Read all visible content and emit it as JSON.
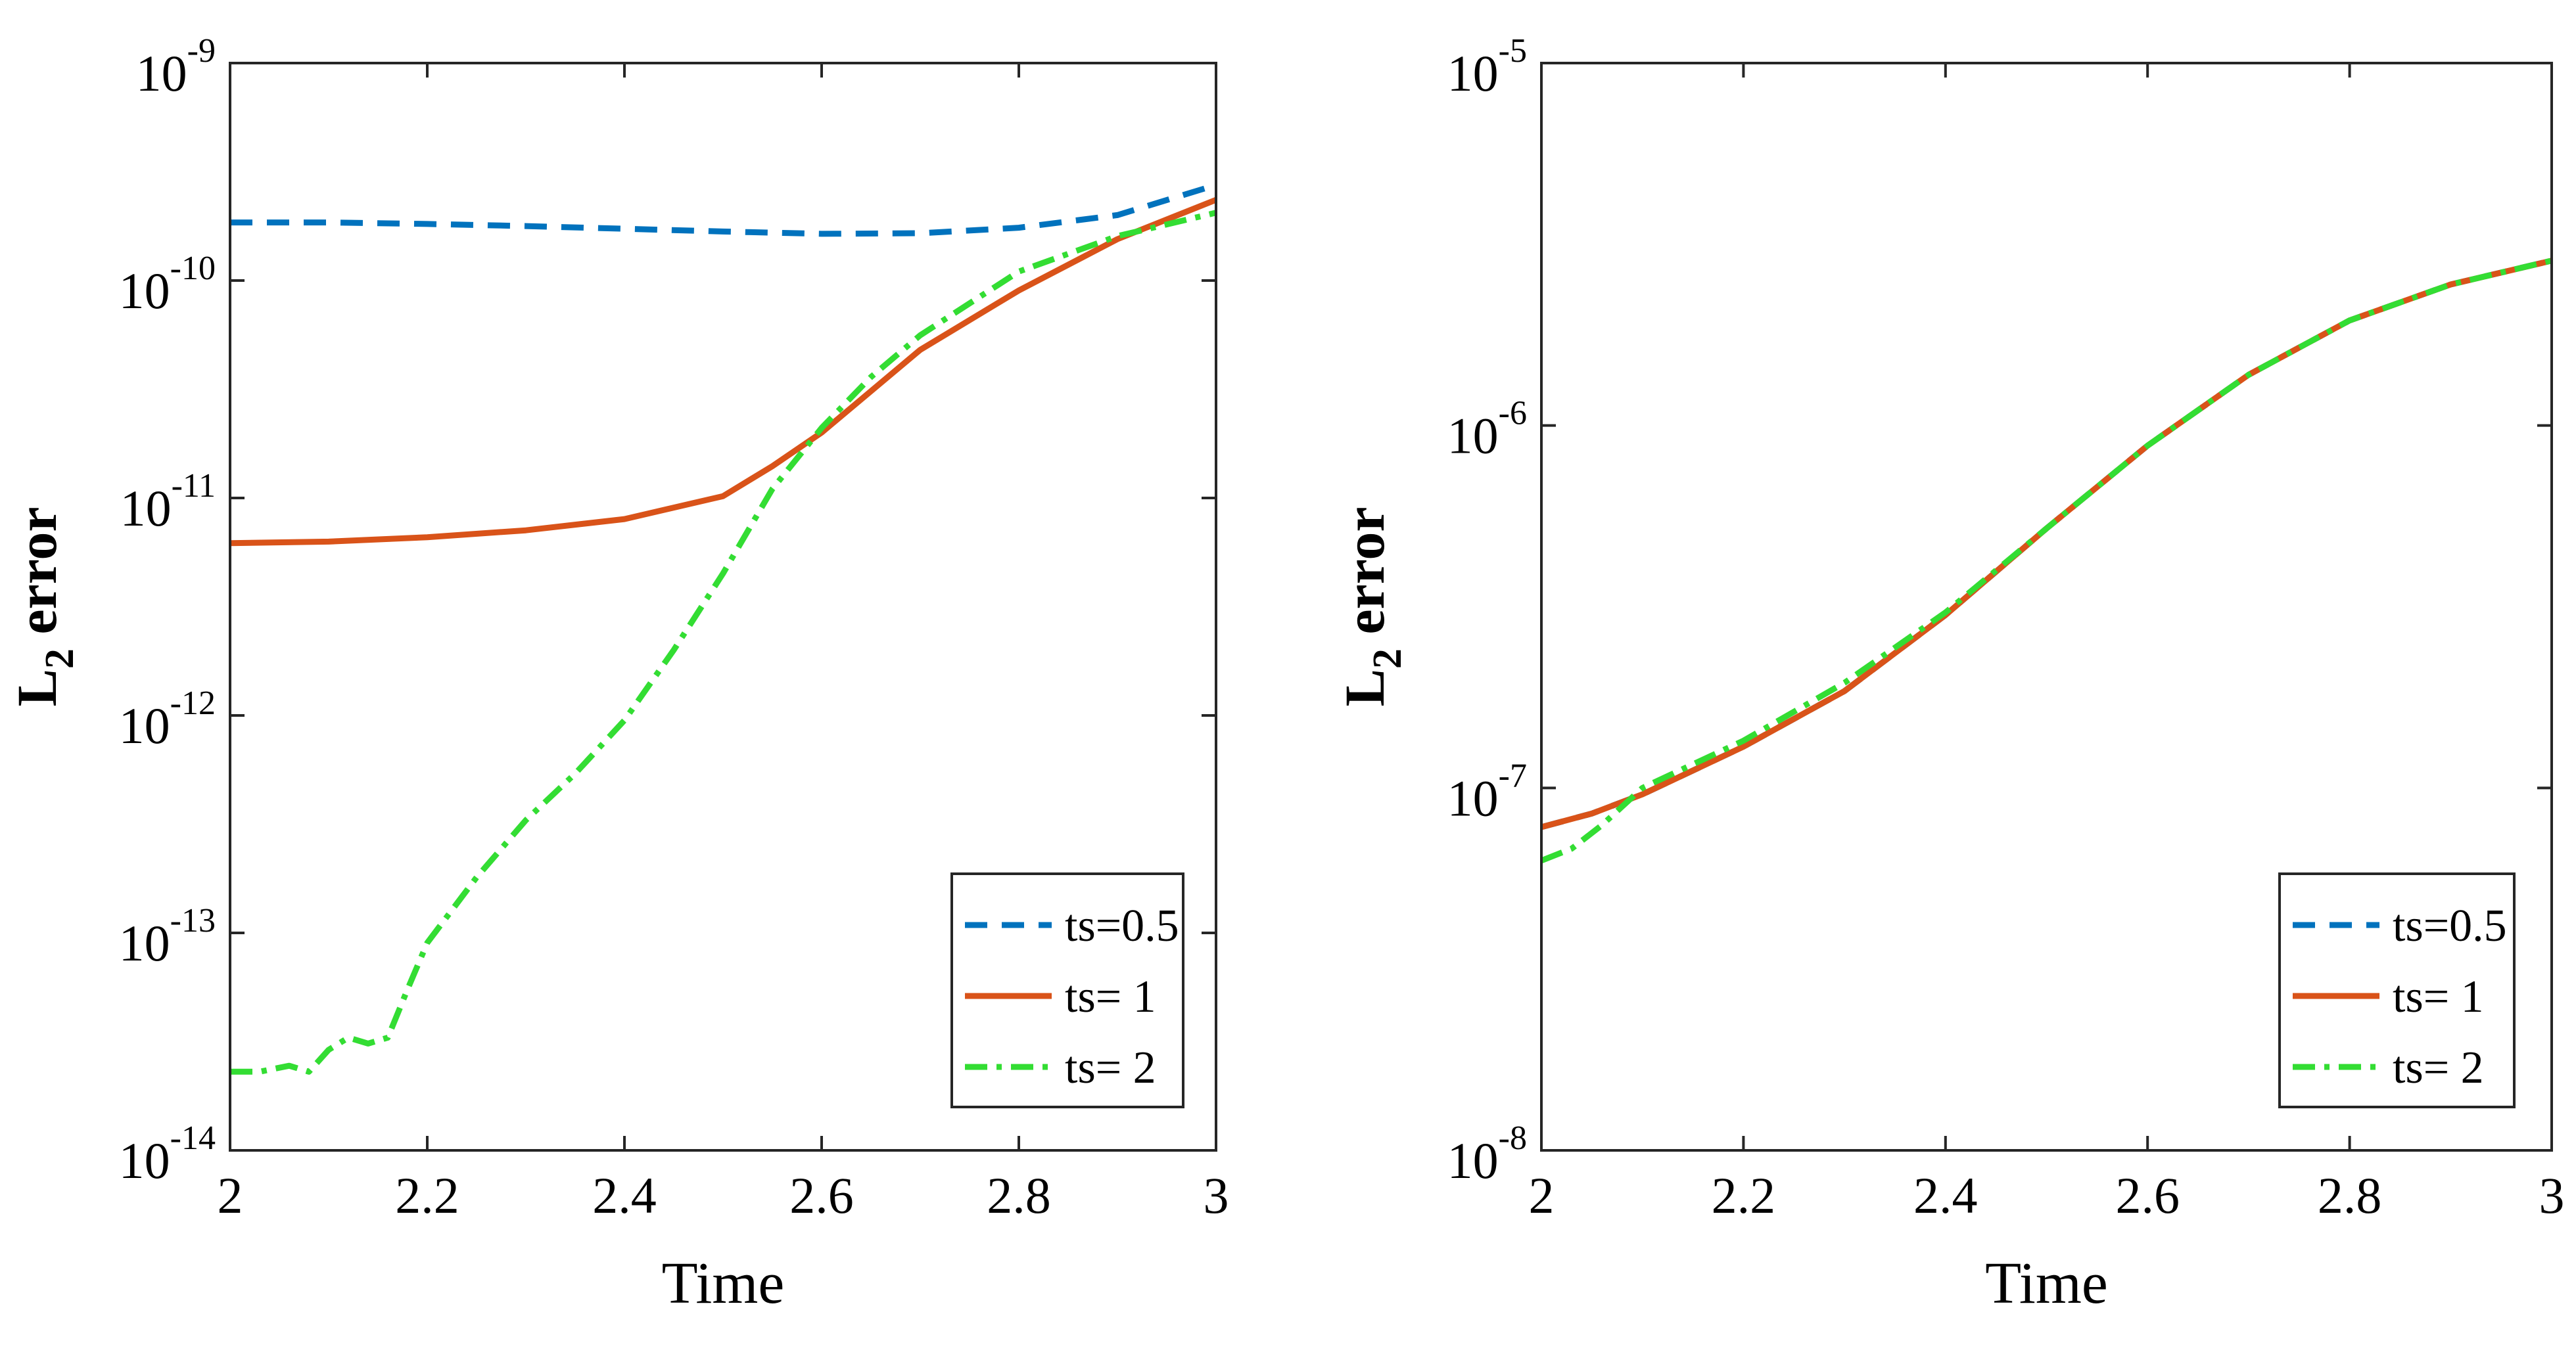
{
  "chart_data": [
    {
      "type": "line",
      "title": "",
      "xlabel": "Time",
      "ylabel": {
        "main": "L",
        "sub": "2",
        "rest": " error"
      },
      "xlim": [
        2,
        3
      ],
      "xticks": [
        "2",
        "2.2",
        "2.4",
        "2.6",
        "2.8",
        "3"
      ],
      "yscale": "log",
      "ylim_exponents": [
        -14,
        -9
      ],
      "yticks": [
        {
          "base": "10",
          "exp": "-14"
        },
        {
          "base": "10",
          "exp": "-13"
        },
        {
          "base": "10",
          "exp": "-12"
        },
        {
          "base": "10",
          "exp": "-11"
        },
        {
          "base": "10",
          "exp": "-10"
        },
        {
          "base": "10",
          "exp": "-9"
        }
      ],
      "legend_position": "bottom-right",
      "series": [
        {
          "name": "ts=0.5",
          "color": "#0072BD",
          "dash": "dashed",
          "x": [
            2.0,
            2.1,
            2.2,
            2.3,
            2.4,
            2.5,
            2.6,
            2.7,
            2.8,
            2.9,
            3.0
          ],
          "y": [
            1.85e-10,
            1.85e-10,
            1.82e-10,
            1.78e-10,
            1.73e-10,
            1.68e-10,
            1.64e-10,
            1.65e-10,
            1.75e-10,
            2e-10,
            2.75e-10
          ]
        },
        {
          "name": "ts= 1",
          "color": "#D95319",
          "dash": "solid",
          "x": [
            2.0,
            2.1,
            2.2,
            2.3,
            2.4,
            2.5,
            2.55,
            2.6,
            2.65,
            2.7,
            2.8,
            2.9,
            3.0
          ],
          "y": [
            6.2e-12,
            6.3e-12,
            6.6e-12,
            7.1e-12,
            8e-12,
            1.02e-11,
            1.4e-11,
            2e-11,
            3.1e-11,
            4.8e-11,
            9e-11,
            1.55e-10,
            2.35e-10
          ]
        },
        {
          "name": "ts= 2",
          "color": "#33DD33",
          "dash": "dashdot",
          "x": [
            2.0,
            2.03,
            2.06,
            2.08,
            2.1,
            2.12,
            2.14,
            2.16,
            2.18,
            2.2,
            2.25,
            2.3,
            2.35,
            2.4,
            2.45,
            2.5,
            2.55,
            2.6,
            2.65,
            2.7,
            2.8,
            2.9,
            3.0
          ],
          "y": [
            2.3e-14,
            2.3e-14,
            2.45e-14,
            2.3e-14,
            2.9e-14,
            3.3e-14,
            3.1e-14,
            3.3e-14,
            5.5e-14,
            9e-14,
            1.8e-13,
            3.3e-13,
            5.4e-13,
            9.5e-13,
            2e-12,
            4.5e-12,
            1.1e-11,
            2.1e-11,
            3.6e-11,
            5.6e-11,
            1.1e-10,
            1.6e-10,
            2.05e-10
          ]
        }
      ]
    },
    {
      "type": "line",
      "title": "",
      "xlabel": "Time",
      "ylabel": {
        "main": "L",
        "sub": "2",
        "rest": " error"
      },
      "xlim": [
        2,
        3
      ],
      "xticks": [
        "2",
        "2.2",
        "2.4",
        "2.6",
        "2.8",
        "3"
      ],
      "yscale": "log",
      "ylim_exponents": [
        -8,
        -5
      ],
      "yticks": [
        {
          "base": "10",
          "exp": "-8"
        },
        {
          "base": "10",
          "exp": "-7"
        },
        {
          "base": "10",
          "exp": "-6"
        },
        {
          "base": "10",
          "exp": "-5"
        }
      ],
      "legend_position": "bottom-right",
      "series": [
        {
          "name": "ts=0.5",
          "color": "#0072BD",
          "dash": "dashed",
          "x": [
            2.0,
            2.05,
            2.1,
            2.2,
            2.3,
            2.4,
            2.5,
            2.6,
            2.7,
            2.8,
            2.9,
            3.0
          ],
          "y": [
            7.8e-08,
            8.5e-08,
            9.6e-08,
            1.3e-07,
            1.85e-07,
            3e-07,
            5.2e-07,
            8.8e-07,
            1.38e-06,
            1.95e-06,
            2.45e-06,
            2.85e-06
          ]
        },
        {
          "name": "ts= 1",
          "color": "#D95319",
          "dash": "solid",
          "x": [
            2.0,
            2.05,
            2.1,
            2.2,
            2.3,
            2.4,
            2.5,
            2.6,
            2.7,
            2.8,
            2.9,
            3.0
          ],
          "y": [
            7.8e-08,
            8.5e-08,
            9.6e-08,
            1.3e-07,
            1.85e-07,
            3e-07,
            5.2e-07,
            8.8e-07,
            1.38e-06,
            1.95e-06,
            2.45e-06,
            2.85e-06
          ]
        },
        {
          "name": "ts= 2",
          "color": "#33DD33",
          "dash": "dashdot",
          "x": [
            2.0,
            2.03,
            2.06,
            2.1,
            2.2,
            2.3,
            2.4,
            2.5,
            2.6,
            2.7,
            2.8,
            2.9,
            3.0
          ],
          "y": [
            6.3e-08,
            6.8e-08,
            7.9e-08,
            1e-07,
            1.35e-07,
            1.95e-07,
            3.05e-07,
            5.2e-07,
            8.8e-07,
            1.38e-06,
            1.95e-06,
            2.45e-06,
            2.85e-06
          ]
        }
      ]
    }
  ]
}
